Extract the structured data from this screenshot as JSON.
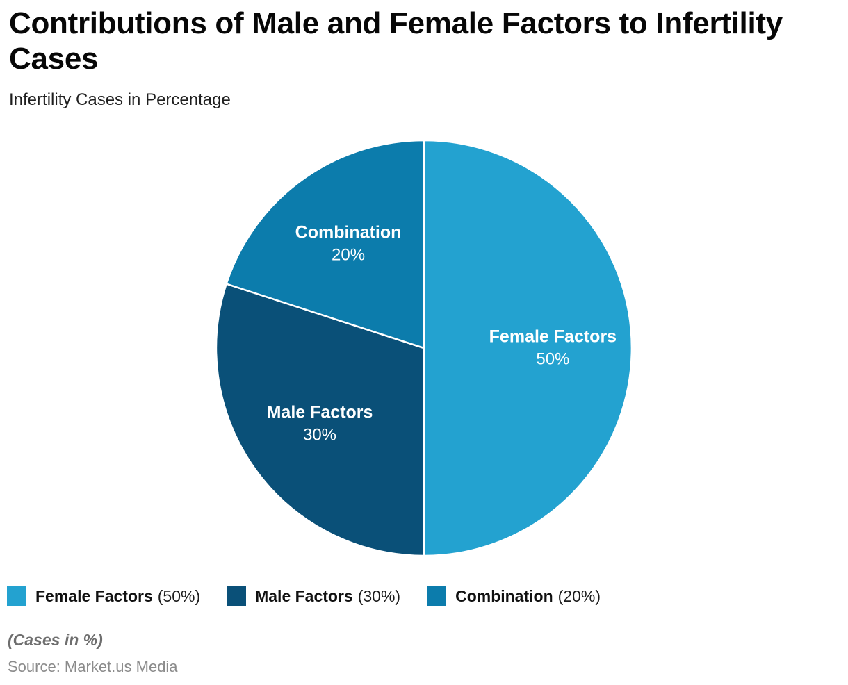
{
  "header": {
    "title": "Contributions of Male and Female Factors to Infertility Cases",
    "subtitle": "Infertility Cases in Percentage"
  },
  "chart_data": {
    "type": "pie",
    "title": "Contributions of Male and Female Factors to Infertility Cases",
    "subtitle": "Infertility Cases in Percentage",
    "unit": "%",
    "start_angle_deg": 0,
    "direction": "clockwise",
    "legend_position": "bottom",
    "slices": [
      {
        "label": "Female Factors",
        "value": 50,
        "value_label": "50%",
        "color": "#23A2D0"
      },
      {
        "label": "Male Factors",
        "value": 30,
        "value_label": "30%",
        "color": "#0A5078"
      },
      {
        "label": "Combination",
        "value": 20,
        "value_label": "20%",
        "color": "#0C7CAC"
      }
    ]
  },
  "legend": {
    "items": [
      {
        "label": "Female Factors",
        "value_text": "(50%)",
        "color": "#23A2D0"
      },
      {
        "label": "Male Factors",
        "value_text": "(30%)",
        "color": "#0A5078"
      },
      {
        "label": "Combination",
        "value_text": "(20%)",
        "color": "#0C7CAC"
      }
    ]
  },
  "footer": {
    "note": "(Cases in %)",
    "source": "Source: Market.us Media"
  }
}
